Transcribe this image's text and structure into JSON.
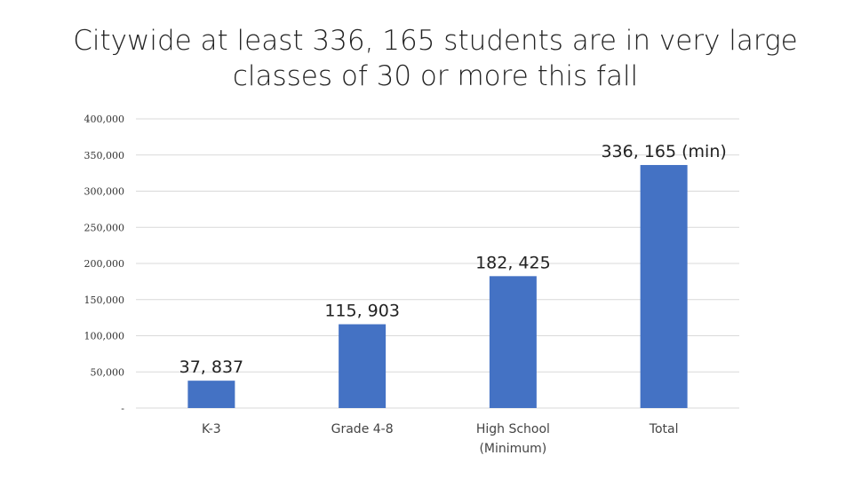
{
  "chart_data": {
    "type": "bar",
    "title": "Citywide at least 336, 165 students are in very large classes of 30 or more this fall",
    "title_lines": [
      "Citywide at least 336, 165 students are in very large",
      "classes of 30 or more this fall"
    ],
    "categories": [
      [
        "K-3"
      ],
      [
        "Grade 4-8"
      ],
      [
        "High School",
        "(Minimum)"
      ],
      [
        "Total"
      ]
    ],
    "values": [
      37837,
      115903,
      182425,
      336165
    ],
    "data_labels": [
      "37, 837",
      "115, 903",
      "182, 425",
      "336, 165 (min)"
    ],
    "ylim": [
      0,
      400000
    ],
    "yticks": [
      0,
      50000,
      100000,
      150000,
      200000,
      250000,
      300000,
      350000,
      400000
    ],
    "ytick_labels": [
      "-",
      "50,000",
      "100,000",
      "150,000",
      "200,000",
      "250,000",
      "300,000",
      "350,000",
      "400,000"
    ],
    "grid": true,
    "legend": "none",
    "bar_color": "#4472C4"
  }
}
